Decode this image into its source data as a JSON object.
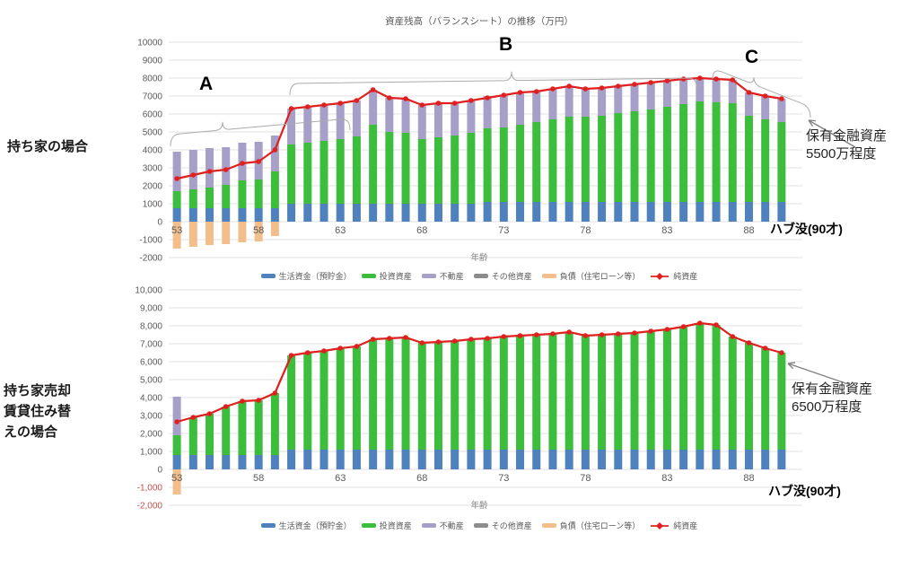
{
  "page_background": "#ffffff",
  "left_labels": {
    "top": "持ち家の場合",
    "bottom": [
      "持ち家売却",
      "賃貸住み替",
      "えの場合"
    ]
  },
  "legend": {
    "items": [
      {
        "label": "生活資金（預貯金）",
        "color": "#4F81BD",
        "marker": "bar"
      },
      {
        "label": "投資資産",
        "color": "#3CBE3C",
        "marker": "bar"
      },
      {
        "label": "不動産",
        "color": "#A6A0C8",
        "marker": "bar"
      },
      {
        "label": "その他資産",
        "color": "#8C8C8C",
        "marker": "bar"
      },
      {
        "label": "負債（住宅ローン等）",
        "color": "#F2BE8C",
        "marker": "bar"
      },
      {
        "label": "純資産",
        "color": "#E01F1F",
        "marker": "line"
      }
    ]
  },
  "chart_data": [
    {
      "name": "owned-home-case",
      "type": "bar",
      "subtype": "stacked-bar-with-line",
      "title": "資産残高（バランスシート）の推移（万円）",
      "xlabel": "年齢",
      "end_label": "ハブ没(90才)",
      "ylim": [
        -2000,
        10000
      ],
      "ytick_step": 1000,
      "ytick_format": "plain",
      "tick_color": "#595959",
      "negative_tick_color": "#595959",
      "grid_color": "#E2E2E2",
      "x": [
        53,
        54,
        55,
        56,
        57,
        58,
        59,
        60,
        61,
        62,
        63,
        64,
        65,
        66,
        67,
        68,
        69,
        70,
        71,
        72,
        73,
        74,
        75,
        76,
        77,
        78,
        79,
        80,
        81,
        82,
        83,
        84,
        85,
        86,
        87,
        88,
        89,
        90
      ],
      "x_ticks": [
        53,
        58,
        63,
        68,
        73,
        78,
        83,
        88
      ],
      "annotation_labels": [
        "A",
        "B",
        "C"
      ],
      "callout": {
        "lines": [
          "保有金融資産",
          "5500万程度"
        ]
      },
      "series": [
        {
          "name": "生活資金（預貯金）",
          "type": "bar",
          "stack": "pos",
          "color": "#4F81BD",
          "values": [
            750,
            750,
            750,
            750,
            750,
            750,
            750,
            1000,
            1000,
            1000,
            1000,
            1000,
            1000,
            1000,
            1000,
            1000,
            1000,
            1000,
            1000,
            1100,
            1100,
            1100,
            1100,
            1100,
            1100,
            1100,
            1100,
            1100,
            1100,
            1100,
            1100,
            1100,
            1100,
            1100,
            1100,
            1100,
            1100,
            1100
          ]
        },
        {
          "name": "投資資産",
          "type": "bar",
          "stack": "pos",
          "color": "#3CBE3C",
          "values": [
            950,
            1050,
            1150,
            1300,
            1550,
            1600,
            2050,
            3300,
            3400,
            3500,
            3600,
            3750,
            4400,
            4000,
            3950,
            3600,
            3700,
            3800,
            3950,
            4100,
            4150,
            4300,
            4450,
            4600,
            4750,
            4750,
            4800,
            4950,
            5050,
            5150,
            5300,
            5450,
            5600,
            5550,
            5500,
            4800,
            4600,
            4450
          ]
        },
        {
          "name": "不動産",
          "type": "bar",
          "stack": "pos",
          "color": "#A6A0C8",
          "values": [
            2200,
            2200,
            2200,
            2100,
            2100,
            2100,
            2000,
            2000,
            2000,
            2000,
            2000,
            2000,
            1950,
            1900,
            1900,
            1900,
            1900,
            1800,
            1800,
            1800,
            1800,
            1800,
            1700,
            1700,
            1700,
            1550,
            1550,
            1500,
            1500,
            1500,
            1450,
            1400,
            1300,
            1300,
            1300,
            1300,
            1300,
            1300
          ]
        },
        {
          "name": "その他資産",
          "type": "bar",
          "stack": "pos",
          "color": "#8C8C8C",
          "values": [
            0,
            0,
            0,
            0,
            0,
            0,
            0,
            0,
            0,
            0,
            0,
            0,
            0,
            0,
            0,
            0,
            0,
            0,
            0,
            0,
            0,
            0,
            0,
            0,
            0,
            0,
            0,
            0,
            0,
            0,
            0,
            0,
            0,
            0,
            0,
            0,
            0,
            0
          ]
        },
        {
          "name": "負債（住宅ローン等）",
          "type": "bar",
          "stack": "neg",
          "color": "#F2BE8C",
          "values": [
            -1500,
            -1400,
            -1300,
            -1250,
            -1150,
            -1100,
            -800,
            0,
            0,
            0,
            0,
            0,
            0,
            0,
            0,
            0,
            0,
            0,
            0,
            0,
            0,
            0,
            0,
            0,
            0,
            0,
            0,
            0,
            0,
            0,
            0,
            0,
            0,
            0,
            0,
            0,
            0,
            0
          ]
        },
        {
          "name": "純資産",
          "type": "line",
          "color": "#E01F1F",
          "values": [
            2400,
            2600,
            2800,
            2900,
            3250,
            3350,
            4000,
            6300,
            6400,
            6500,
            6600,
            6750,
            7350,
            6900,
            6850,
            6500,
            6600,
            6600,
            6750,
            6900,
            7050,
            7200,
            7250,
            7400,
            7550,
            7400,
            7450,
            7550,
            7650,
            7750,
            7850,
            7950,
            8000,
            7950,
            7900,
            7200,
            7000,
            6850
          ]
        }
      ]
    },
    {
      "name": "sell-home-rent-case",
      "type": "bar",
      "subtype": "stacked-bar-with-line",
      "title": "",
      "xlabel": "年齢",
      "end_label": "ハブ没(90才)",
      "ylim": [
        -2000,
        10000
      ],
      "ytick_step": 1000,
      "ytick_format": "comma",
      "tick_color": "#595959",
      "negative_tick_color": "#C0504D",
      "grid_color": "#E2E2E2",
      "x": [
        53,
        54,
        55,
        56,
        57,
        58,
        59,
        60,
        61,
        62,
        63,
        64,
        65,
        66,
        67,
        68,
        69,
        70,
        71,
        72,
        73,
        74,
        75,
        76,
        77,
        78,
        79,
        80,
        81,
        82,
        83,
        84,
        85,
        86,
        87,
        88,
        89,
        90
      ],
      "x_ticks": [
        53,
        58,
        63,
        68,
        73,
        78,
        83,
        88
      ],
      "annotation_labels": [],
      "callout": {
        "lines": [
          "保有金融資産",
          "6500万程度"
        ]
      },
      "series": [
        {
          "name": "生活資金（預貯金）",
          "type": "bar",
          "stack": "pos",
          "color": "#4F81BD",
          "values": [
            800,
            800,
            800,
            800,
            800,
            800,
            800,
            1100,
            1100,
            1100,
            1100,
            1100,
            1100,
            1100,
            1100,
            1100,
            1100,
            1100,
            1100,
            1100,
            1100,
            1100,
            1100,
            1100,
            1100,
            1100,
            1100,
            1100,
            1100,
            1100,
            1100,
            1100,
            1100,
            1100,
            1100,
            1100,
            1100,
            1100
          ]
        },
        {
          "name": "投資資産",
          "type": "bar",
          "stack": "pos",
          "color": "#3CBE3C",
          "values": [
            1100,
            2100,
            2300,
            2700,
            3000,
            3050,
            3450,
            5250,
            5400,
            5500,
            5650,
            5750,
            6150,
            6200,
            6250,
            5950,
            6000,
            6050,
            6150,
            6200,
            6300,
            6350,
            6400,
            6450,
            6550,
            6350,
            6400,
            6450,
            6500,
            6600,
            6700,
            6850,
            7050,
            6950,
            6300,
            5950,
            5650,
            5400
          ]
        },
        {
          "name": "不動産",
          "type": "bar",
          "stack": "pos",
          "color": "#A6A0C8",
          "values": [
            2150,
            0,
            0,
            0,
            0,
            0,
            0,
            0,
            0,
            0,
            0,
            0,
            0,
            0,
            0,
            0,
            0,
            0,
            0,
            0,
            0,
            0,
            0,
            0,
            0,
            0,
            0,
            0,
            0,
            0,
            0,
            0,
            0,
            0,
            0,
            0,
            0,
            0
          ]
        },
        {
          "name": "その他資産",
          "type": "bar",
          "stack": "pos",
          "color": "#8C8C8C",
          "values": [
            0,
            0,
            0,
            0,
            0,
            0,
            0,
            0,
            0,
            0,
            0,
            0,
            0,
            0,
            0,
            0,
            0,
            0,
            0,
            0,
            0,
            0,
            0,
            0,
            0,
            0,
            0,
            0,
            0,
            0,
            0,
            0,
            0,
            0,
            0,
            0,
            0,
            0
          ]
        },
        {
          "name": "負債（住宅ローン等）",
          "type": "bar",
          "stack": "neg",
          "color": "#F2BE8C",
          "values": [
            -1400,
            0,
            0,
            0,
            0,
            0,
            0,
            0,
            0,
            0,
            0,
            0,
            0,
            0,
            0,
            0,
            0,
            0,
            0,
            0,
            0,
            0,
            0,
            0,
            0,
            0,
            0,
            0,
            0,
            0,
            0,
            0,
            0,
            0,
            0,
            0,
            0,
            0
          ]
        },
        {
          "name": "純資産",
          "type": "line",
          "color": "#E01F1F",
          "values": [
            2650,
            2900,
            3100,
            3500,
            3800,
            3850,
            4250,
            6350,
            6500,
            6600,
            6750,
            6850,
            7250,
            7300,
            7350,
            7050,
            7100,
            7150,
            7250,
            7300,
            7400,
            7450,
            7500,
            7550,
            7650,
            7450,
            7500,
            7550,
            7600,
            7700,
            7800,
            7950,
            8150,
            8050,
            7400,
            7050,
            6750,
            6500
          ]
        }
      ]
    }
  ]
}
